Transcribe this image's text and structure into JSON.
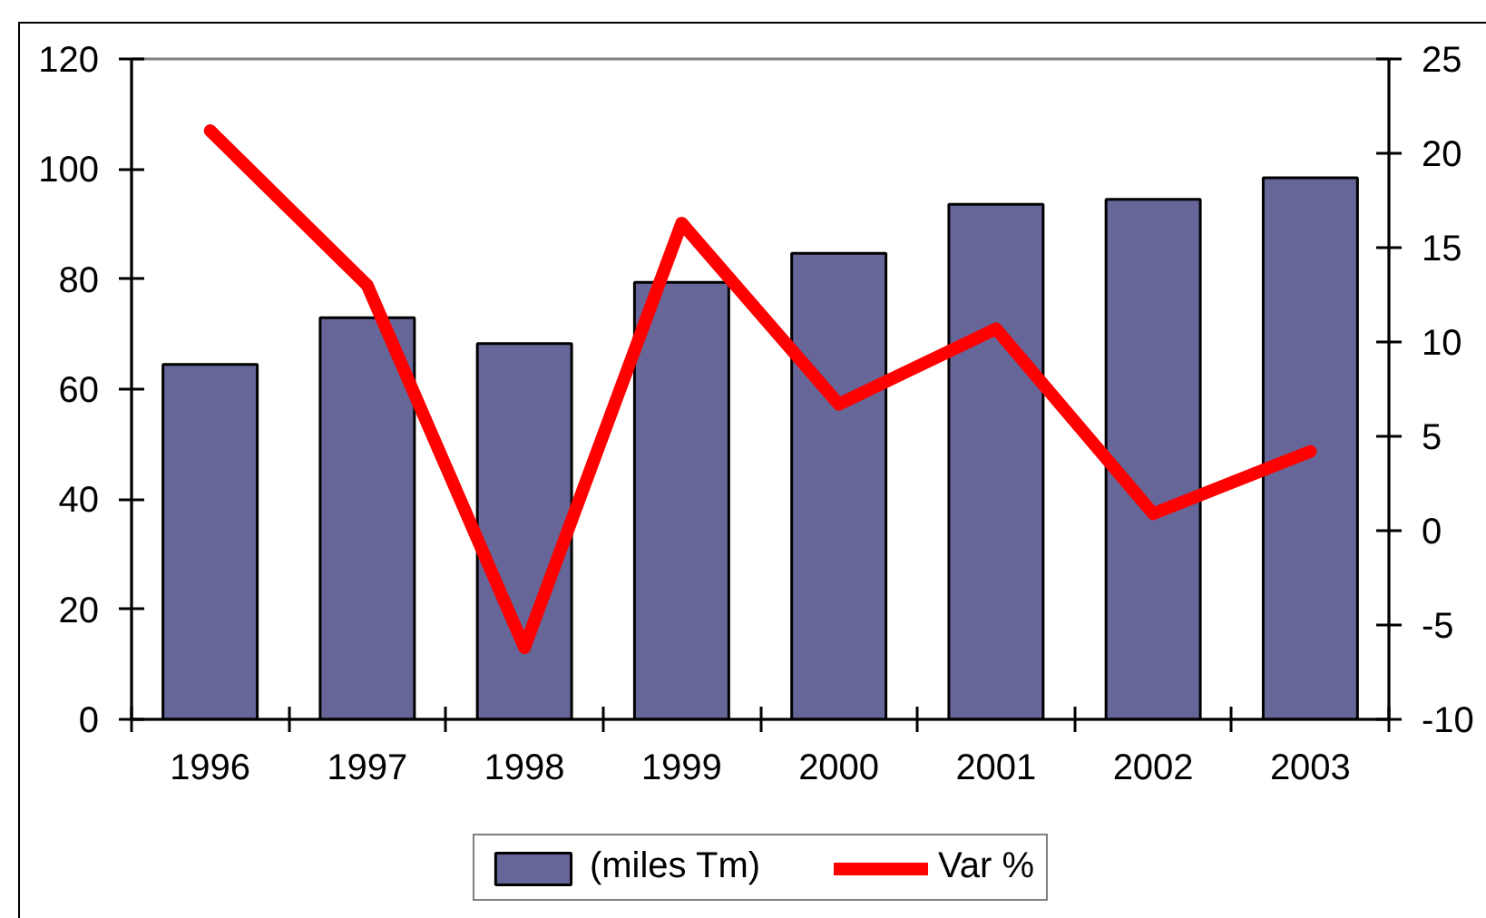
{
  "chart_data": {
    "type": "bar",
    "categories": [
      "1996",
      "1997",
      "1998",
      "1999",
      "2000",
      "2001",
      "2002",
      "2003"
    ],
    "series": [
      {
        "name": "(miles Tm)",
        "color": "#666699",
        "values": [
          64.5,
          73.0,
          68.3,
          79.4,
          84.7,
          93.6,
          94.5,
          98.4
        ]
      },
      {
        "name": "Var %",
        "type": "line",
        "axis": "y2",
        "color": "#ff0000",
        "values": [
          21.2,
          13.0,
          -6.2,
          16.3,
          6.7,
          10.7,
          0.9,
          4.2
        ]
      }
    ],
    "ylim": [
      0,
      120
    ],
    "yticks": [
      0,
      20,
      40,
      60,
      80,
      100,
      120
    ],
    "y2lim": [
      -10,
      25
    ],
    "y2ticks": [
      -10,
      -5,
      0,
      5,
      10,
      15,
      20,
      25
    ],
    "grid": false,
    "legend": "bottom"
  }
}
